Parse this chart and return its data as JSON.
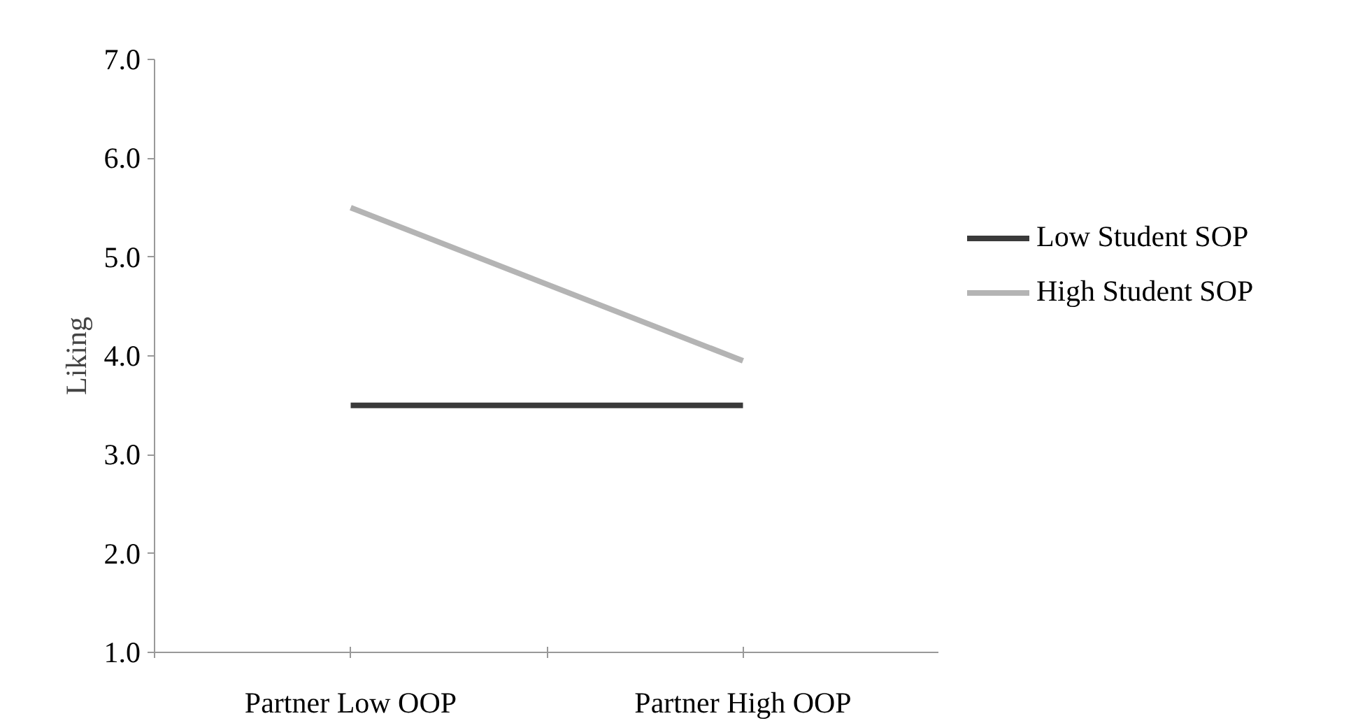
{
  "chart_data": {
    "type": "line",
    "ylabel": "Liking",
    "categories": [
      "Partner Low OOP",
      "Partner High OOP"
    ],
    "series": [
      {
        "name": "Low Student SOP",
        "color": "#3a3a3a",
        "values": [
          3.5,
          3.5
        ]
      },
      {
        "name": "High Student SOP",
        "color": "#b4b4b4",
        "values": [
          5.5,
          3.95
        ]
      }
    ],
    "ylim": [
      1,
      7
    ],
    "yticks": [
      {
        "value": 1,
        "label": "1.0"
      },
      {
        "value": 2,
        "label": "2.0"
      },
      {
        "value": 3,
        "label": "3.0"
      },
      {
        "value": 4,
        "label": "4.0"
      },
      {
        "value": 5,
        "label": "5.0"
      },
      {
        "value": 6,
        "label": "6.0"
      },
      {
        "value": 7,
        "label": "7.0"
      }
    ],
    "grid": false,
    "legend": "right",
    "marker": "none",
    "line_style": "solid"
  }
}
